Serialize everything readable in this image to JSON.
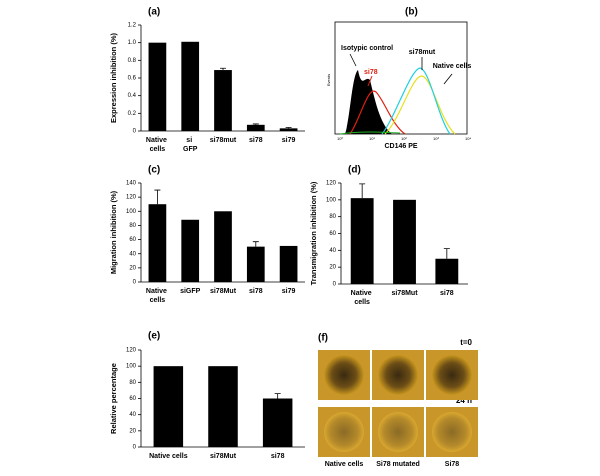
{
  "chart_data": [
    {
      "type": "bar",
      "title": "(a)",
      "y_label": "Expression inhibition (%)",
      "categories": [
        "Native cells",
        "si GFP",
        "si78mut",
        "si78",
        "si79"
      ],
      "values": [
        1.0,
        1.01,
        0.69,
        0.07,
        0.03
      ],
      "errors": [
        null,
        null,
        0.02,
        0.01,
        0.01
      ],
      "color": "#000000",
      "ylim": [
        0,
        1.2
      ],
      "yticks": [
        0,
        0.2,
        0.4,
        0.6,
        0.8,
        {
          "value": 1,
          "label": "1.0"
        },
        1.2
      ]
    },
    {
      "type": "bar",
      "title": "(c)",
      "y_label": "Migration inhibition (%)",
      "categories": [
        "Native cells",
        "siGFP",
        "si78Mut",
        "si78",
        "si79"
      ],
      "values": [
        110,
        88,
        100,
        50,
        51
      ],
      "errors": [
        20,
        null,
        null,
        7,
        null
      ],
      "color": "#000000",
      "ylim": [
        0,
        140
      ],
      "yticks": [
        0,
        20,
        40,
        60,
        80,
        100,
        120,
        140
      ]
    },
    {
      "type": "bar",
      "title": "(d)",
      "y_label": "Transmigration inhibition (%)",
      "categories": [
        "Native cells",
        "si78Mut",
        "si78"
      ],
      "values": [
        102,
        100,
        30
      ],
      "errors": [
        17,
        null,
        12
      ],
      "color": "#000000",
      "ylim": [
        0,
        120
      ],
      "yticks": [
        0,
        20,
        40,
        60,
        80,
        100,
        120
      ]
    },
    {
      "type": "bar",
      "title": "(e)",
      "y_label": "Relative percentage",
      "categories": [
        "Native cells",
        "si78Mut",
        "si78"
      ],
      "values": [
        100,
        100,
        60
      ],
      "errors": [
        null,
        null,
        6
      ],
      "color": "#000000",
      "ylim": [
        0,
        120
      ],
      "yticks": [
        0,
        20,
        40,
        60,
        80,
        100,
        120
      ]
    }
  ],
  "flow_panel": {
    "title": "(b)",
    "x_label": "CD146 PE",
    "y_label": "Events",
    "xtick_labels": [
      "10⁰",
      "10¹",
      "10²",
      "10³",
      "10⁴"
    ],
    "isotypic": "Isotypic control",
    "si78": "si78",
    "si78mut": "si78mut",
    "native": "Native cells"
  },
  "image_panel": {
    "title": "(f)",
    "t0": "t=0",
    "t24": "24 h",
    "columns": [
      "Native cells",
      "Si78 mutated",
      "Si78"
    ]
  }
}
